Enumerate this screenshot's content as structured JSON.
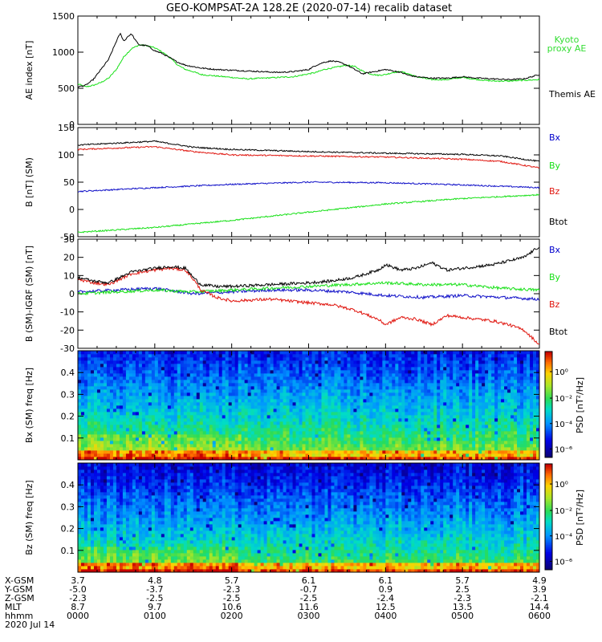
{
  "title": "GEO-KOMPSAT-2A 128.2E (2020-07-14) recalib dataset",
  "colors": {
    "black": "#000000",
    "red": "#e0160f",
    "green": "#17e017",
    "blue": "#1010c8",
    "kyoto_label": "#33dd33",
    "bx_label": "#0000cc"
  },
  "chart_data": [
    {
      "type": "line",
      "ylabel": "AE index [nT]",
      "ylim": [
        0,
        1500
      ],
      "yticks": [
        0,
        500,
        1000,
        1500
      ],
      "xlim": [
        0,
        6
      ],
      "series": [
        {
          "name": "Kyoto proxy AE",
          "color": "#17e017",
          "x": [
            0,
            0.1,
            0.2,
            0.3,
            0.4,
            0.5,
            0.6,
            0.7,
            0.8,
            0.9,
            1.0,
            1.1,
            1.2,
            1.3,
            1.4,
            1.5,
            1.6,
            1.7,
            1.8,
            1.9,
            2.0,
            2.2,
            2.4,
            2.6,
            2.8,
            3.0,
            3.1,
            3.2,
            3.3,
            3.4,
            3.5,
            3.6,
            3.7,
            3.8,
            3.9,
            4.0,
            4.1,
            4.2,
            4.3,
            4.4,
            4.5,
            4.6,
            4.8,
            5.0,
            5.2,
            5.4,
            5.6,
            5.8,
            6.0
          ],
          "y": [
            560,
            520,
            540,
            580,
            640,
            760,
            940,
            1050,
            1100,
            1090,
            1060,
            1000,
            920,
            820,
            760,
            730,
            690,
            680,
            670,
            660,
            650,
            630,
            640,
            650,
            660,
            700,
            720,
            760,
            780,
            800,
            820,
            800,
            740,
            700,
            680,
            690,
            720,
            730,
            700,
            660,
            640,
            620,
            620,
            650,
            620,
            600,
            600,
            610,
            620
          ]
        },
        {
          "name": "Themis AE",
          "color": "#000000",
          "x": [
            0,
            0.1,
            0.2,
            0.3,
            0.4,
            0.5,
            0.55,
            0.6,
            0.65,
            0.7,
            0.75,
            0.8,
            0.9,
            1.0,
            1.1,
            1.2,
            1.3,
            1.4,
            1.5,
            1.6,
            1.8,
            2.0,
            2.2,
            2.4,
            2.6,
            2.8,
            3.0,
            3.1,
            3.2,
            3.3,
            3.4,
            3.5,
            3.6,
            3.7,
            3.8,
            3.9,
            4.0,
            4.1,
            4.2,
            4.3,
            4.4,
            4.5,
            4.6,
            4.8,
            5.0,
            5.2,
            5.4,
            5.6,
            5.8,
            6.0
          ],
          "y": [
            520,
            540,
            620,
            760,
            900,
            1150,
            1260,
            1150,
            1220,
            1250,
            1160,
            1100,
            1090,
            1020,
            980,
            920,
            860,
            820,
            800,
            780,
            760,
            750,
            740,
            730,
            720,
            730,
            760,
            820,
            860,
            880,
            860,
            820,
            760,
            700,
            720,
            740,
            760,
            740,
            720,
            680,
            660,
            650,
            640,
            640,
            660,
            640,
            630,
            620,
            630,
            690
          ]
        }
      ]
    },
    {
      "type": "line",
      "ylabel": "B [nT] (SM)",
      "ylim": [
        -50,
        150
      ],
      "yticks": [
        -50,
        0,
        50,
        100,
        150
      ],
      "xlim": [
        0,
        6
      ],
      "series": [
        {
          "name": "Bx",
          "color": "#1010c8",
          "x": [
            0,
            1,
            2,
            3,
            4,
            5,
            6
          ],
          "y": [
            33,
            40,
            46,
            50,
            49,
            45,
            40
          ]
        },
        {
          "name": "By",
          "color": "#e0160f",
          "x": [
            0,
            1,
            1.5,
            2,
            3,
            4,
            5,
            5.5,
            6
          ],
          "y": [
            110,
            115,
            106,
            100,
            98,
            96,
            92,
            88,
            76
          ]
        },
        {
          "name": "Bz",
          "color": "#17e017",
          "x": [
            0,
            1,
            2,
            3,
            4,
            5,
            6
          ],
          "y": [
            -42,
            -33,
            -20,
            -5,
            10,
            20,
            27
          ]
        },
        {
          "name": "Btot",
          "color": "#000000",
          "x": [
            0,
            1,
            1.5,
            2,
            3,
            4,
            5,
            5.5,
            6
          ],
          "y": [
            118,
            125,
            114,
            110,
            106,
            103,
            101,
            98,
            88
          ]
        }
      ]
    },
    {
      "type": "line",
      "ylabel": "B (SM)-IGRF (SM) [nT]",
      "ylim": [
        -30,
        30
      ],
      "yticks": [
        -30,
        -20,
        -10,
        0,
        10,
        20,
        30
      ],
      "xlim": [
        0,
        6
      ],
      "series": [
        {
          "name": "Bx",
          "color": "#1010c8",
          "x": [
            0,
            0.5,
            1,
            1.5,
            2,
            2.5,
            3,
            3.5,
            4,
            4.5,
            5,
            5.5,
            6
          ],
          "y": [
            1,
            2,
            3,
            0,
            1,
            2,
            2,
            1,
            -1,
            -2,
            -1,
            -2,
            -3
          ]
        },
        {
          "name": "By",
          "color": "#17e017",
          "x": [
            0,
            0.5,
            1,
            1.5,
            2,
            2.5,
            3,
            3.5,
            4,
            4.5,
            5,
            5.5,
            6
          ],
          "y": [
            0,
            1,
            2,
            1,
            2,
            3,
            4,
            5,
            6,
            5,
            5,
            3,
            2
          ]
        },
        {
          "name": "Bz",
          "color": "#e0160f",
          "x": [
            0,
            0.2,
            0.4,
            0.5,
            0.7,
            1.0,
            1.2,
            1.4,
            1.5,
            1.6,
            1.8,
            2.0,
            2.5,
            3.0,
            3.3,
            3.6,
            3.9,
            4.0,
            4.2,
            4.4,
            4.6,
            4.8,
            5.0,
            5.2,
            5.4,
            5.6,
            5.8,
            5.9,
            6.0
          ],
          "y": [
            8,
            6,
            5,
            7,
            11,
            13,
            14,
            13,
            8,
            2,
            -2,
            -4,
            -3,
            -5,
            -6,
            -9,
            -14,
            -17,
            -13,
            -14,
            -17,
            -12,
            -13,
            -14,
            -15,
            -17,
            -20,
            -24,
            -28
          ]
        },
        {
          "name": "Btot",
          "color": "#000000",
          "x": [
            0,
            0.2,
            0.4,
            0.5,
            0.7,
            1.0,
            1.2,
            1.4,
            1.5,
            1.6,
            1.8,
            2.0,
            2.5,
            3.0,
            3.3,
            3.6,
            3.9,
            4.0,
            4.2,
            4.4,
            4.6,
            4.8,
            5.0,
            5.2,
            5.4,
            5.6,
            5.8,
            5.9,
            6.0
          ],
          "y": [
            9,
            7,
            6,
            8,
            12,
            14,
            15,
            14,
            9,
            5,
            4,
            4,
            5,
            6,
            7,
            9,
            13,
            16,
            13,
            14,
            17,
            13,
            14,
            15,
            16,
            18,
            20,
            23,
            26
          ]
        }
      ]
    },
    {
      "type": "heatmap",
      "ylabel": "Bx (SM) freq [Hz]",
      "yticks": [
        0.1,
        0.2,
        0.3,
        0.4
      ],
      "ylim": [
        0,
        0.5
      ],
      "xlim": [
        0,
        6
      ],
      "colorbar_label": "PSD [nT²/Hz]",
      "colorbar_ticks": [
        "10⁰",
        "10⁻²",
        "10⁻⁴",
        "10⁻⁶"
      ]
    },
    {
      "type": "heatmap",
      "ylabel": "Bz (SM) freq [Hz]",
      "yticks": [
        0.1,
        0.2,
        0.3,
        0.4
      ],
      "ylim": [
        0,
        0.5
      ],
      "xlim": [
        0,
        6
      ],
      "colorbar_label": "PSD [nT²/Hz]",
      "colorbar_ticks": [
        "10⁰",
        "10⁻²",
        "10⁻⁴",
        "10⁻⁶"
      ]
    }
  ],
  "legend_ae": {
    "kyoto": "Kyoto proxy AE",
    "themis": "Themis AE"
  },
  "legend_b": [
    "Bx",
    "By",
    "Bz",
    "Btot"
  ],
  "ephemeris": {
    "rows": [
      {
        "label": "X-GSM",
        "values": [
          "3.7",
          "4.8",
          "5.7",
          "6.1",
          "6.1",
          "5.7",
          "4.9"
        ]
      },
      {
        "label": "Y-GSM",
        "values": [
          "-5.0",
          "-3.7",
          "-2.3",
          "-0.7",
          "0.9",
          "2.5",
          "3.9"
        ]
      },
      {
        "label": "Z-GSM",
        "values": [
          "-2.3",
          "-2.5",
          "-2.5",
          "-2.5",
          "-2.4",
          "-2.3",
          "-2.1"
        ]
      },
      {
        "label": "MLT",
        "values": [
          "8.7",
          "9.7",
          "10.6",
          "11.6",
          "12.5",
          "13.5",
          "14.4"
        ]
      },
      {
        "label": "hhmm",
        "values": [
          "0000",
          "0100",
          "0200",
          "0300",
          "0400",
          "0500",
          "0600"
        ]
      }
    ],
    "date": "2020 Jul 14"
  }
}
